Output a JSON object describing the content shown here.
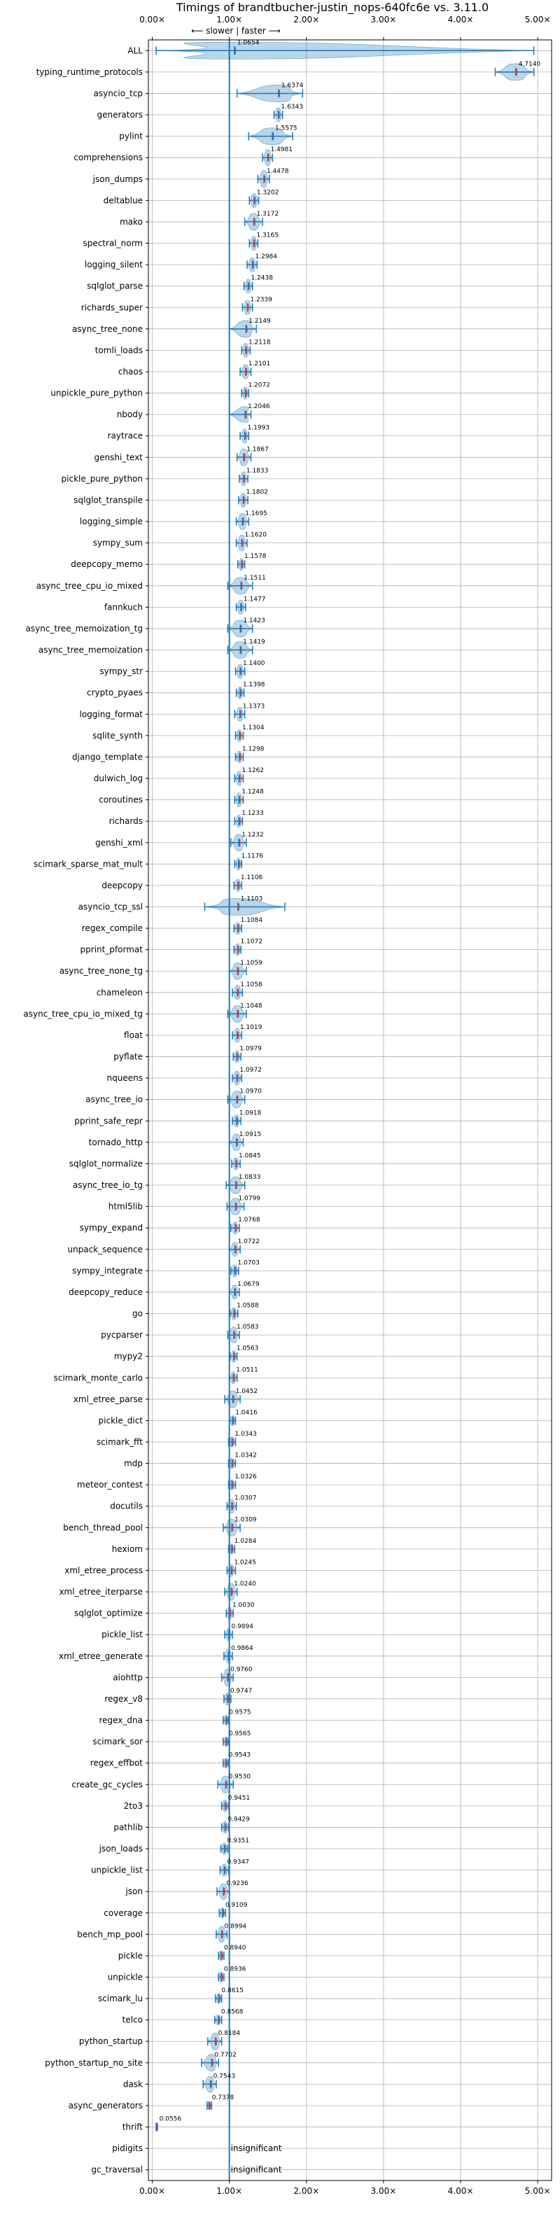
{
  "chart_data": {
    "type": "violin",
    "title": "Timings of brandtbucher-justin_nops-640fc6e vs. 3.11.0",
    "direction_label": "⟵ slower | faster ⟶",
    "xlim": [
      -0.05,
      5.18
    ],
    "x_ticks": [
      "0.00×",
      "1.00×",
      "2.00×",
      "3.00×",
      "4.00×",
      "5.00×"
    ],
    "x_tick_values": [
      0,
      1,
      2,
      3,
      4,
      5
    ],
    "reference_line": 1.0,
    "grid": true,
    "insignificant_label": "insignificant",
    "benchmarks": [
      {
        "name": "ALL",
        "value": 1.0654,
        "label": "1.0654",
        "lo": 0.05,
        "hi": 4.95,
        "spread": 0.35
      },
      {
        "name": "typing_runtime_protocols",
        "value": 4.714,
        "label": "4.7140",
        "lo": 4.45,
        "hi": 4.95,
        "spread": 0.25
      },
      {
        "name": "asyncio_tcp",
        "value": 1.6374,
        "label": "1.6374",
        "lo": 1.1,
        "hi": 1.95,
        "spread": 0.4
      },
      {
        "name": "generators",
        "value": 1.6343,
        "label": "1.6343",
        "lo": 1.58,
        "hi": 1.69,
        "spread": 0.05
      },
      {
        "name": "pylint",
        "value": 1.5575,
        "label": "1.5575",
        "lo": 1.25,
        "hi": 1.82,
        "spread": 0.3
      },
      {
        "name": "comprehensions",
        "value": 1.4981,
        "label": "1.4981",
        "lo": 1.43,
        "hi": 1.56,
        "spread": 0.06
      },
      {
        "name": "json_dumps",
        "value": 1.4478,
        "label": "1.4478",
        "lo": 1.37,
        "hi": 1.52,
        "spread": 0.07
      },
      {
        "name": "deltablue",
        "value": 1.3202,
        "label": "1.3202",
        "lo": 1.26,
        "hi": 1.38,
        "spread": 0.05
      },
      {
        "name": "mako",
        "value": 1.3172,
        "label": "1.3172",
        "lo": 1.2,
        "hi": 1.43,
        "spread": 0.1
      },
      {
        "name": "spectral_norm",
        "value": 1.3165,
        "label": "1.3165",
        "lo": 1.26,
        "hi": 1.37,
        "spread": 0.05
      },
      {
        "name": "logging_silent",
        "value": 1.2984,
        "label": "1.2984",
        "lo": 1.23,
        "hi": 1.36,
        "spread": 0.05
      },
      {
        "name": "sqlglot_parse",
        "value": 1.2438,
        "label": "1.2438",
        "lo": 1.19,
        "hi": 1.3,
        "spread": 0.05
      },
      {
        "name": "richards_super",
        "value": 1.2339,
        "label": "1.2339",
        "lo": 1.17,
        "hi": 1.3,
        "spread": 0.05
      },
      {
        "name": "async_tree_none",
        "value": 1.2149,
        "label": "1.2149",
        "lo": 1.0,
        "hi": 1.35,
        "spread": 0.15
      },
      {
        "name": "tomli_loads",
        "value": 1.2118,
        "label": "1.2118",
        "lo": 1.16,
        "hi": 1.27,
        "spread": 0.05
      },
      {
        "name": "chaos",
        "value": 1.2101,
        "label": "1.2101",
        "lo": 1.14,
        "hi": 1.28,
        "spread": 0.05
      },
      {
        "name": "unpickle_pure_python",
        "value": 1.2072,
        "label": "1.2072",
        "lo": 1.16,
        "hi": 1.25,
        "spread": 0.04
      },
      {
        "name": "nbody",
        "value": 1.2046,
        "label": "1.2046",
        "lo": 1.0,
        "hi": 1.28,
        "spread": 0.06
      },
      {
        "name": "raytrace",
        "value": 1.1993,
        "label": "1.1993",
        "lo": 1.14,
        "hi": 1.25,
        "spread": 0.05
      },
      {
        "name": "genshi_text",
        "value": 1.1867,
        "label": "1.1867",
        "lo": 1.1,
        "hi": 1.28,
        "spread": 0.07
      },
      {
        "name": "pickle_pure_python",
        "value": 1.1833,
        "label": "1.1833",
        "lo": 1.13,
        "hi": 1.24,
        "spread": 0.05
      },
      {
        "name": "sqlglot_transpile",
        "value": 1.1802,
        "label": "1.1802",
        "lo": 1.12,
        "hi": 1.24,
        "spread": 0.05
      },
      {
        "name": "logging_simple",
        "value": 1.1695,
        "label": "1.1695",
        "lo": 1.09,
        "hi": 1.25,
        "spread": 0.06
      },
      {
        "name": "sympy_sum",
        "value": 1.162,
        "label": "1.1620",
        "lo": 1.09,
        "hi": 1.23,
        "spread": 0.06
      },
      {
        "name": "deepcopy_memo",
        "value": 1.1578,
        "label": "1.1578",
        "lo": 1.11,
        "hi": 1.2,
        "spread": 0.04
      },
      {
        "name": "async_tree_cpu_io_mixed",
        "value": 1.1511,
        "label": "1.1511",
        "lo": 0.98,
        "hi": 1.3,
        "spread": 0.12
      },
      {
        "name": "fannkuch",
        "value": 1.1477,
        "label": "1.1477",
        "lo": 1.09,
        "hi": 1.21,
        "spread": 0.05
      },
      {
        "name": "async_tree_memoization_tg",
        "value": 1.1423,
        "label": "1.1423",
        "lo": 0.98,
        "hi": 1.3,
        "spread": 0.12
      },
      {
        "name": "async_tree_memoization",
        "value": 1.1419,
        "label": "1.1419",
        "lo": 0.98,
        "hi": 1.3,
        "spread": 0.12
      },
      {
        "name": "sympy_str",
        "value": 1.14,
        "label": "1.1400",
        "lo": 1.08,
        "hi": 1.2,
        "spread": 0.05
      },
      {
        "name": "crypto_pyaes",
        "value": 1.1398,
        "label": "1.1398",
        "lo": 1.09,
        "hi": 1.19,
        "spread": 0.04
      },
      {
        "name": "logging_format",
        "value": 1.1373,
        "label": "1.1373",
        "lo": 1.07,
        "hi": 1.2,
        "spread": 0.05
      },
      {
        "name": "sqlite_synth",
        "value": 1.1304,
        "label": "1.1304",
        "lo": 1.08,
        "hi": 1.18,
        "spread": 0.04
      },
      {
        "name": "django_template",
        "value": 1.1298,
        "label": "1.1298",
        "lo": 1.08,
        "hi": 1.18,
        "spread": 0.04
      },
      {
        "name": "dulwich_log",
        "value": 1.1262,
        "label": "1.1262",
        "lo": 1.07,
        "hi": 1.18,
        "spread": 0.05
      },
      {
        "name": "coroutines",
        "value": 1.1248,
        "label": "1.1248",
        "lo": 1.07,
        "hi": 1.18,
        "spread": 0.05
      },
      {
        "name": "richards",
        "value": 1.1233,
        "label": "1.1233",
        "lo": 1.07,
        "hi": 1.17,
        "spread": 0.04
      },
      {
        "name": "genshi_xml",
        "value": 1.1232,
        "label": "1.1232",
        "lo": 1.02,
        "hi": 1.22,
        "spread": 0.07
      },
      {
        "name": "scimark_sparse_mat_mult",
        "value": 1.1176,
        "label": "1.1176",
        "lo": 1.07,
        "hi": 1.16,
        "spread": 0.04
      },
      {
        "name": "deepcopy",
        "value": 1.1106,
        "label": "1.1106",
        "lo": 1.06,
        "hi": 1.16,
        "spread": 0.04
      },
      {
        "name": "asyncio_tcp_ssl",
        "value": 1.1103,
        "label": "1.1103",
        "lo": 0.68,
        "hi": 1.72,
        "spread": 0.35
      },
      {
        "name": "regex_compile",
        "value": 1.1084,
        "label": "1.1084",
        "lo": 1.06,
        "hi": 1.16,
        "spread": 0.04
      },
      {
        "name": "pprint_pformat",
        "value": 1.1072,
        "label": "1.1072",
        "lo": 1.06,
        "hi": 1.15,
        "spread": 0.04
      },
      {
        "name": "async_tree_none_tg",
        "value": 1.1059,
        "label": "1.1059",
        "lo": 1.0,
        "hi": 1.22,
        "spread": 0.08
      },
      {
        "name": "chameleon",
        "value": 1.1058,
        "label": "1.1058",
        "lo": 1.04,
        "hi": 1.17,
        "spread": 0.05
      },
      {
        "name": "async_tree_cpu_io_mixed_tg",
        "value": 1.1048,
        "label": "1.1048",
        "lo": 0.98,
        "hi": 1.22,
        "spread": 0.1
      },
      {
        "name": "float",
        "value": 1.1019,
        "label": "1.1019",
        "lo": 1.04,
        "hi": 1.16,
        "spread": 0.05
      },
      {
        "name": "pyflate",
        "value": 1.0979,
        "label": "1.0979",
        "lo": 1.05,
        "hi": 1.15,
        "spread": 0.04
      },
      {
        "name": "nqueens",
        "value": 1.0972,
        "label": "1.0972",
        "lo": 1.04,
        "hi": 1.16,
        "spread": 0.05
      },
      {
        "name": "async_tree_io",
        "value": 1.097,
        "label": "1.0970",
        "lo": 0.98,
        "hi": 1.2,
        "spread": 0.09
      },
      {
        "name": "pprint_safe_repr",
        "value": 1.0918,
        "label": "1.0918",
        "lo": 1.04,
        "hi": 1.15,
        "spread": 0.04
      },
      {
        "name": "tornado_http",
        "value": 1.0915,
        "label": "1.0915",
        "lo": 1.0,
        "hi": 1.18,
        "spread": 0.07
      },
      {
        "name": "sqlglot_normalize",
        "value": 1.0845,
        "label": "1.0845",
        "lo": 1.03,
        "hi": 1.14,
        "spread": 0.04
      },
      {
        "name": "async_tree_io_tg",
        "value": 1.0833,
        "label": "1.0833",
        "lo": 0.96,
        "hi": 1.2,
        "spread": 0.1
      },
      {
        "name": "html5lib",
        "value": 1.0799,
        "label": "1.0799",
        "lo": 0.97,
        "hi": 1.19,
        "spread": 0.09
      },
      {
        "name": "sympy_expand",
        "value": 1.0768,
        "label": "1.0768",
        "lo": 1.02,
        "hi": 1.13,
        "spread": 0.04
      },
      {
        "name": "unpack_sequence",
        "value": 1.0722,
        "label": "1.0722",
        "lo": 1.0,
        "hi": 1.14,
        "spread": 0.05
      },
      {
        "name": "sympy_integrate",
        "value": 1.0703,
        "label": "1.0703",
        "lo": 1.02,
        "hi": 1.12,
        "spread": 0.04
      },
      {
        "name": "deepcopy_reduce",
        "value": 1.0679,
        "label": "1.0679",
        "lo": 1.0,
        "hi": 1.13,
        "spread": 0.05
      },
      {
        "name": "go",
        "value": 1.0588,
        "label": "1.0588",
        "lo": 1.01,
        "hi": 1.11,
        "spread": 0.04
      },
      {
        "name": "pycparser",
        "value": 1.0583,
        "label": "1.0583",
        "lo": 0.98,
        "hi": 1.13,
        "spread": 0.06
      },
      {
        "name": "mypy2",
        "value": 1.0563,
        "label": "1.0563",
        "lo": 1.01,
        "hi": 1.1,
        "spread": 0.04
      },
      {
        "name": "scimark_monte_carlo",
        "value": 1.0511,
        "label": "1.0511",
        "lo": 1.0,
        "hi": 1.1,
        "spread": 0.04
      },
      {
        "name": "xml_etree_parse",
        "value": 1.0452,
        "label": "1.0452",
        "lo": 0.94,
        "hi": 1.14,
        "spread": 0.08
      },
      {
        "name": "pickle_dict",
        "value": 1.0416,
        "label": "1.0416",
        "lo": 1.0,
        "hi": 1.08,
        "spread": 0.03
      },
      {
        "name": "scimark_fft",
        "value": 1.0343,
        "label": "1.0343",
        "lo": 0.99,
        "hi": 1.08,
        "spread": 0.03
      },
      {
        "name": "mdp",
        "value": 1.0342,
        "label": "1.0342",
        "lo": 0.99,
        "hi": 1.08,
        "spread": 0.03
      },
      {
        "name": "meteor_contest",
        "value": 1.0326,
        "label": "1.0326",
        "lo": 0.99,
        "hi": 1.08,
        "spread": 0.03
      },
      {
        "name": "docutils",
        "value": 1.0307,
        "label": "1.0307",
        "lo": 0.97,
        "hi": 1.09,
        "spread": 0.05
      },
      {
        "name": "bench_thread_pool",
        "value": 1.0309,
        "label": "1.0309",
        "lo": 0.92,
        "hi": 1.14,
        "spread": 0.08
      },
      {
        "name": "hexiom",
        "value": 1.0284,
        "label": "1.0284",
        "lo": 0.99,
        "hi": 1.07,
        "spread": 0.03
      },
      {
        "name": "xml_etree_process",
        "value": 1.0245,
        "label": "1.0245",
        "lo": 0.97,
        "hi": 1.08,
        "spread": 0.04
      },
      {
        "name": "xml_etree_iterparse",
        "value": 1.024,
        "label": "1.0240",
        "lo": 0.94,
        "hi": 1.1,
        "spread": 0.07
      },
      {
        "name": "sqlglot_optimize",
        "value": 1.003,
        "label": "1.0030",
        "lo": 0.96,
        "hi": 1.05,
        "spread": 0.04
      },
      {
        "name": "pickle_list",
        "value": 0.9894,
        "label": "0.9894",
        "lo": 0.94,
        "hi": 1.04,
        "spread": 0.04
      },
      {
        "name": "xml_etree_generate",
        "value": 0.9864,
        "label": "0.9864",
        "lo": 0.93,
        "hi": 1.04,
        "spread": 0.05
      },
      {
        "name": "aiohttp",
        "value": 0.976,
        "label": "0.9760",
        "lo": 0.9,
        "hi": 1.05,
        "spread": 0.07
      },
      {
        "name": "regex_v8",
        "value": 0.9747,
        "label": "0.9747",
        "lo": 0.93,
        "hi": 1.02,
        "spread": 0.04
      },
      {
        "name": "regex_dna",
        "value": 0.9575,
        "label": "0.9575",
        "lo": 0.92,
        "hi": 0.99,
        "spread": 0.03
      },
      {
        "name": "scimark_sor",
        "value": 0.9565,
        "label": "0.9565",
        "lo": 0.92,
        "hi": 0.99,
        "spread": 0.03
      },
      {
        "name": "regex_effbot",
        "value": 0.9543,
        "label": "0.9543",
        "lo": 0.92,
        "hi": 0.99,
        "spread": 0.03
      },
      {
        "name": "create_gc_cycles",
        "value": 0.953,
        "label": "0.9530",
        "lo": 0.85,
        "hi": 1.05,
        "spread": 0.07
      },
      {
        "name": "2to3",
        "value": 0.9451,
        "label": "0.9451",
        "lo": 0.9,
        "hi": 0.99,
        "spread": 0.04
      },
      {
        "name": "pathlib",
        "value": 0.9429,
        "label": "0.9429",
        "lo": 0.9,
        "hi": 0.99,
        "spread": 0.04
      },
      {
        "name": "json_loads",
        "value": 0.9351,
        "label": "0.9351",
        "lo": 0.89,
        "hi": 0.98,
        "spread": 0.04
      },
      {
        "name": "unpickle_list",
        "value": 0.9347,
        "label": "0.9347",
        "lo": 0.88,
        "hi": 0.99,
        "spread": 0.04
      },
      {
        "name": "json",
        "value": 0.9236,
        "label": "0.9236",
        "lo": 0.84,
        "hi": 1.0,
        "spread": 0.06
      },
      {
        "name": "coverage",
        "value": 0.9109,
        "label": "0.9109",
        "lo": 0.87,
        "hi": 0.95,
        "spread": 0.03
      },
      {
        "name": "bench_mp_pool",
        "value": 0.8994,
        "label": "0.8994",
        "lo": 0.83,
        "hi": 0.97,
        "spread": 0.06
      },
      {
        "name": "pickle",
        "value": 0.894,
        "label": "0.8940",
        "lo": 0.86,
        "hi": 0.93,
        "spread": 0.03
      },
      {
        "name": "unpickle",
        "value": 0.8936,
        "label": "0.8936",
        "lo": 0.86,
        "hi": 0.93,
        "spread": 0.03
      },
      {
        "name": "scimark_lu",
        "value": 0.8615,
        "label": "0.8615",
        "lo": 0.82,
        "hi": 0.9,
        "spread": 0.03
      },
      {
        "name": "telco",
        "value": 0.8568,
        "label": "0.8568",
        "lo": 0.81,
        "hi": 0.9,
        "spread": 0.03
      },
      {
        "name": "python_startup",
        "value": 0.8184,
        "label": "0.8184",
        "lo": 0.72,
        "hi": 0.9,
        "spread": 0.07
      },
      {
        "name": "python_startup_no_site",
        "value": 0.7702,
        "label": "0.7702",
        "lo": 0.64,
        "hi": 0.86,
        "spread": 0.08
      },
      {
        "name": "dask",
        "value": 0.7543,
        "label": "0.7543",
        "lo": 0.66,
        "hi": 0.83,
        "spread": 0.06
      },
      {
        "name": "async_generators",
        "value": 0.7378,
        "label": "0.7378",
        "lo": 0.71,
        "hi": 0.77,
        "spread": 0.02
      },
      {
        "name": "thrift",
        "value": 0.0556,
        "label": "0.0556",
        "lo": 0.05,
        "hi": 0.062,
        "spread": 0.005
      },
      {
        "name": "pidigits",
        "value": null,
        "label": "",
        "insignificant": true
      },
      {
        "name": "gc_traversal",
        "value": null,
        "label": "",
        "insignificant": true
      }
    ]
  }
}
